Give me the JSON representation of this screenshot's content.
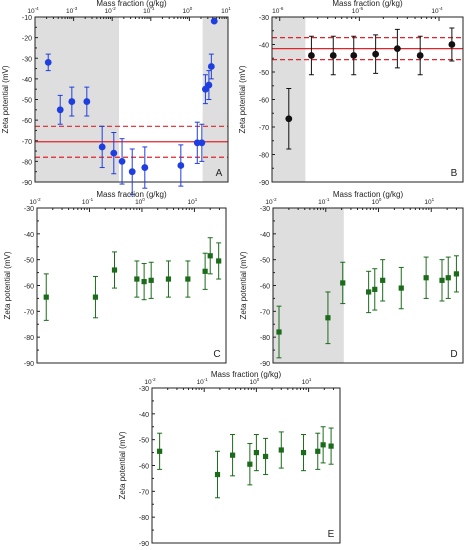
{
  "colors": {
    "blue": "#1f3ee0",
    "black": "#111111",
    "green": "#1b6b1b",
    "shade": "#dedede",
    "red": "#e0242b",
    "frame": "#222222"
  },
  "chart_data": [
    {
      "panel": "A",
      "type": "scatter",
      "marker": "circle",
      "color": "#1f3ee0",
      "xlabel": "Mass fraction (g/kg)",
      "ylabel": "Zeta potential (mV)",
      "x_scale": "log",
      "x_axis_position": "top",
      "xlim": [
        0.0001,
        10
      ],
      "ylim": [
        -90,
        -10
      ],
      "xticks": [
        {
          "v": 0.0001,
          "l": "10"
        },
        {
          "v": 0.001,
          "l": "10"
        },
        {
          "v": 0.01,
          "l": "10"
        },
        {
          "v": 0.1,
          "l": "10"
        },
        {
          "v": 1,
          "l": "10"
        },
        {
          "v": 10,
          "l": "10"
        }
      ],
      "xtick_sup": [
        "-4",
        "-3",
        "-2",
        "-1",
        "0",
        "1"
      ],
      "shaded": [
        [
          0.0001,
          0.015
        ],
        [
          2.2,
          10
        ]
      ],
      "hlines": [
        {
          "y": -70.5,
          "style": "solid"
        },
        {
          "y": -63,
          "style": "dashed"
        },
        {
          "y": -78,
          "style": "dashed"
        }
      ],
      "points": [
        {
          "x": 0.00022,
          "y": -32,
          "err": 4
        },
        {
          "x": 0.00045,
          "y": -55,
          "err": 7
        },
        {
          "x": 0.0009,
          "y": -51,
          "err": 7
        },
        {
          "x": 0.0022,
          "y": -51,
          "err": 7
        },
        {
          "x": 0.0055,
          "y": -73,
          "err": 10
        },
        {
          "x": 0.011,
          "y": -76,
          "err": 10
        },
        {
          "x": 0.018,
          "y": -80,
          "err": 11
        },
        {
          "x": 0.033,
          "y": -85,
          "err": 11
        },
        {
          "x": 0.07,
          "y": -83,
          "err": 10
        },
        {
          "x": 0.6,
          "y": -82,
          "err": 10
        },
        {
          "x": 1.6,
          "y": -71,
          "err": 10
        },
        {
          "x": 2.1,
          "y": -71,
          "err": 9
        },
        {
          "x": 2.6,
          "y": -45,
          "err": 7
        },
        {
          "x": 3.2,
          "y": -43,
          "err": 7
        },
        {
          "x": 3.7,
          "y": -34,
          "err": 6
        },
        {
          "x": 4.4,
          "y": -12,
          "err": 0
        }
      ],
      "panel_label": "A"
    },
    {
      "panel": "B",
      "type": "scatter",
      "marker": "circle",
      "color": "#111111",
      "xlabel": "Mass fraction (g/kg)",
      "ylabel": "Zeta potential (mV)",
      "x_scale": "log",
      "x_axis_position": "top",
      "xlim": [
        8e-07,
        0.0002
      ],
      "ylim": [
        -90,
        -30
      ],
      "xticks": [
        {
          "v": 1e-06,
          "l": "10"
        },
        {
          "v": 1e-05,
          "l": "10"
        },
        {
          "v": 0.0001,
          "l": "10"
        }
      ],
      "xtick_sup": [
        "-6",
        "-5",
        "-4"
      ],
      "shaded": [
        [
          8e-07,
          2.1e-06
        ]
      ],
      "hlines": [
        {
          "y": -41.5,
          "style": "solid"
        },
        {
          "y": -37.5,
          "style": "dashed"
        },
        {
          "y": -45.5,
          "style": "dashed"
        }
      ],
      "points": [
        {
          "x": 1.3e-06,
          "y": -67,
          "err": 11
        },
        {
          "x": 2.5e-06,
          "y": -44,
          "err": 7
        },
        {
          "x": 4.7e-06,
          "y": -44,
          "err": 7
        },
        {
          "x": 8.5e-06,
          "y": -44,
          "err": 7
        },
        {
          "x": 1.6e-05,
          "y": -43.5,
          "err": 7
        },
        {
          "x": 3e-05,
          "y": -41.5,
          "err": 7
        },
        {
          "x": 5.8e-05,
          "y": -44,
          "err": 7
        },
        {
          "x": 0.000145,
          "y": -40,
          "err": 6
        }
      ],
      "panel_label": "B"
    },
    {
      "panel": "C",
      "type": "scatter",
      "marker": "square",
      "color": "#1b6b1b",
      "xlabel": "Mass fraction (g/kg)",
      "ylabel": "Zeta potential (mV)",
      "x_scale": "log",
      "x_axis_position": "top",
      "xlim": [
        0.01,
        40
      ],
      "ylim": [
        -90,
        -30
      ],
      "xticks": [
        {
          "v": 0.01,
          "l": "10"
        },
        {
          "v": 0.1,
          "l": "10"
        },
        {
          "v": 1,
          "l": "10"
        },
        {
          "v": 10,
          "l": "10"
        }
      ],
      "xtick_sup": [
        "-2",
        "-1",
        "0",
        "1"
      ],
      "shaded": [],
      "hlines": [],
      "points": [
        {
          "x": 0.015,
          "y": -64.5,
          "err": 9
        },
        {
          "x": 0.13,
          "y": -64.5,
          "err": 8
        },
        {
          "x": 0.3,
          "y": -54,
          "err": 7
        },
        {
          "x": 0.8,
          "y": -57.5,
          "err": 7
        },
        {
          "x": 1.1,
          "y": -58.5,
          "err": 7
        },
        {
          "x": 1.5,
          "y": -58,
          "err": 7
        },
        {
          "x": 3.2,
          "y": -57.5,
          "err": 7
        },
        {
          "x": 7.5,
          "y": -57.5,
          "err": 7
        },
        {
          "x": 16,
          "y": -54.5,
          "err": 7
        },
        {
          "x": 20,
          "y": -48.5,
          "err": 7
        },
        {
          "x": 29,
          "y": -50.5,
          "err": 7
        }
      ],
      "panel_label": "C"
    },
    {
      "panel": "D",
      "type": "scatter",
      "marker": "square",
      "color": "#1b6b1b",
      "xlabel": "Mass fraction (g/kg)",
      "ylabel": "Zeta potential (mV)",
      "x_scale": "log",
      "x_axis_position": "top",
      "xlim": [
        0.01,
        40
      ],
      "ylim": [
        -90,
        -30
      ],
      "xticks": [
        {
          "v": 0.01,
          "l": "10"
        },
        {
          "v": 0.1,
          "l": "10"
        },
        {
          "v": 1,
          "l": "10"
        },
        {
          "v": 10,
          "l": "10"
        }
      ],
      "xtick_sup": [
        "-2",
        "-1",
        "0",
        "1"
      ],
      "shaded": [
        [
          0.01,
          0.22
        ]
      ],
      "hlines": [],
      "points": [
        {
          "x": 0.013,
          "y": -78,
          "err": 10
        },
        {
          "x": 0.11,
          "y": -72.5,
          "err": 10
        },
        {
          "x": 0.21,
          "y": -59,
          "err": 8
        },
        {
          "x": 0.65,
          "y": -62.5,
          "err": 8
        },
        {
          "x": 0.85,
          "y": -61.5,
          "err": 8
        },
        {
          "x": 1.2,
          "y": -58,
          "err": 8
        },
        {
          "x": 2.7,
          "y": -61,
          "err": 8
        },
        {
          "x": 8,
          "y": -57,
          "err": 8
        },
        {
          "x": 16,
          "y": -58,
          "err": 8
        },
        {
          "x": 21,
          "y": -57,
          "err": 8
        },
        {
          "x": 30,
          "y": -55.5,
          "err": 7
        }
      ],
      "panel_label": "D"
    },
    {
      "panel": "E",
      "type": "scatter",
      "marker": "square",
      "color": "#1b6b1b",
      "xlabel": "Mass fraction (g/kg)",
      "ylabel": "Zeta potential (mV)",
      "x_scale": "log",
      "x_axis_position": "top",
      "xlim": [
        0.01,
        40
      ],
      "ylim": [
        -90,
        -30
      ],
      "xticks": [
        {
          "v": 0.01,
          "l": "10"
        },
        {
          "v": 0.1,
          "l": "10"
        },
        {
          "v": 1,
          "l": "10"
        },
        {
          "v": 10,
          "l": "10"
        }
      ],
      "xtick_sup": [
        "-2",
        "-1",
        "0",
        "1"
      ],
      "shaded": [],
      "hlines": [],
      "points": [
        {
          "x": 0.014,
          "y": -54.5,
          "err": 7
        },
        {
          "x": 0.18,
          "y": -63.5,
          "err": 9
        },
        {
          "x": 0.35,
          "y": -56,
          "err": 8
        },
        {
          "x": 0.75,
          "y": -59.5,
          "err": 8
        },
        {
          "x": 1,
          "y": -55,
          "err": 7
        },
        {
          "x": 1.5,
          "y": -56.5,
          "err": 7
        },
        {
          "x": 3,
          "y": -54,
          "err": 7
        },
        {
          "x": 8,
          "y": -55,
          "err": 7
        },
        {
          "x": 15,
          "y": -54.5,
          "err": 7
        },
        {
          "x": 19,
          "y": -52,
          "err": 7
        },
        {
          "x": 27,
          "y": -52.5,
          "err": 7
        }
      ],
      "panel_label": "E"
    }
  ]
}
